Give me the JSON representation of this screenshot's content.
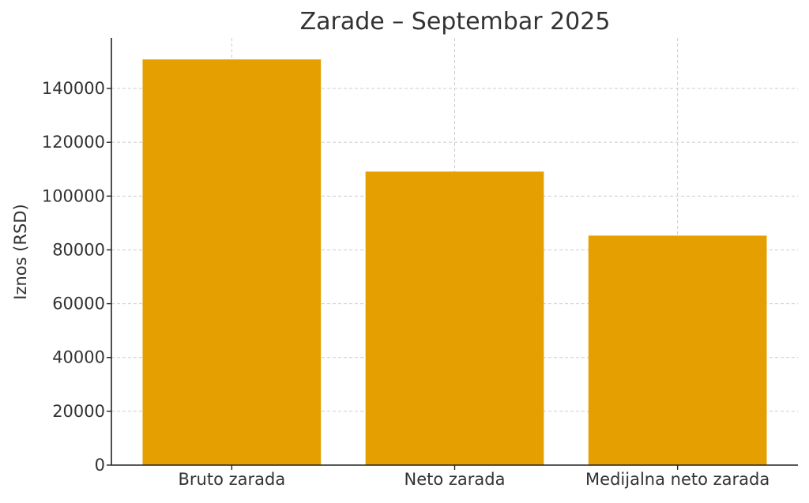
{
  "chart_data": {
    "type": "bar",
    "title": "Zarade – Septembar 2025",
    "xlabel": "",
    "ylabel": "Iznos (RSD)",
    "categories": [
      "Bruto zarada",
      "Neto zarada",
      "Medijalna neto zarada"
    ],
    "values": [
      150800,
      109100,
      85300
    ],
    "ylim": [
      0,
      158800
    ],
    "yticks": [
      0,
      20000,
      40000,
      60000,
      80000,
      100000,
      120000,
      140000
    ],
    "grid": true,
    "bar_color": "#E69F00"
  }
}
